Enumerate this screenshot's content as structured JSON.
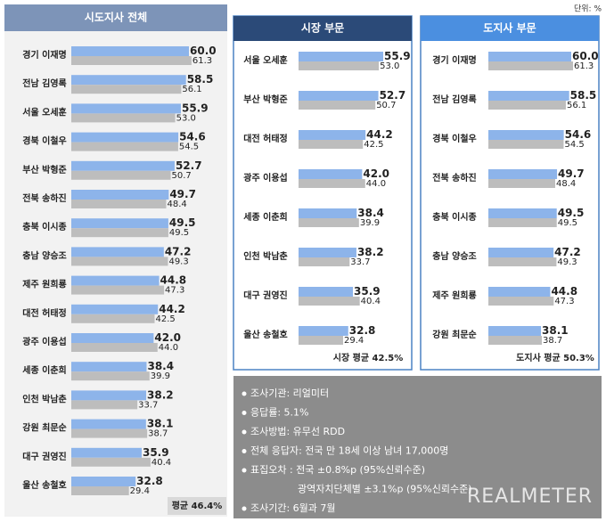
{
  "unit": "단위: %",
  "chart_data": [
    {
      "type": "bar",
      "title": "시도지사 전체",
      "annotation": "평균 46.4%",
      "categories": [
        "경기 이재명",
        "전남 김영록",
        "서울 오세훈",
        "경북 이철우",
        "부산 박형준",
        "전북 송하진",
        "충북 이시종",
        "충남 양승조",
        "제주 원희룡",
        "대전 허태정",
        "광주 이용섭",
        "세종 이춘희",
        "인천 박남춘",
        "강원 최문순",
        "대구 권영진",
        "울산 송철호"
      ],
      "series": [
        {
          "color": "#8db4ea",
          "values": [
            60.0,
            58.5,
            55.9,
            54.6,
            52.7,
            49.7,
            49.5,
            47.2,
            44.8,
            44.2,
            42.0,
            38.4,
            38.2,
            38.1,
            35.9,
            32.8
          ],
          "value_labels": [
            "60.0",
            "58.5",
            "55.9",
            "54.6",
            "52.7",
            "49.7",
            "49.5",
            "47.2",
            "44.8",
            "44.2",
            "42.0",
            "38.4",
            "38.2",
            "38.1",
            "35.9",
            "32.8"
          ]
        },
        {
          "color": "#bdbdbd",
          "values": [
            61.3,
            56.1,
            53.0,
            54.5,
            50.7,
            48.4,
            49.5,
            49.3,
            47.3,
            42.5,
            44.0,
            39.9,
            33.7,
            38.7,
            40.4,
            29.4
          ],
          "value_labels": [
            "61.3",
            "56.1",
            "53.0",
            "54.5",
            "50.7",
            "48.4",
            "49.5",
            "49.3",
            "47.3",
            "42.5",
            "44.0",
            "39.9",
            "33.7",
            "38.7",
            "40.4",
            "29.4"
          ]
        }
      ]
    },
    {
      "type": "bar",
      "title": "시장 부문",
      "annotation": "시장 평균 42.5%",
      "categories": [
        "서울 오세훈",
        "부산 박형준",
        "대전 허태정",
        "광주 이용섭",
        "세종 이춘희",
        "인천 박남춘",
        "대구 권영진",
        "울산 송철호"
      ],
      "series": [
        {
          "color": "#8db4ea",
          "values": [
            55.9,
            52.7,
            44.2,
            42.0,
            38.4,
            38.2,
            35.9,
            32.8
          ],
          "value_labels": [
            "55.9",
            "52.7",
            "44.2",
            "42.0",
            "38.4",
            "38.2",
            "35.9",
            "32.8"
          ]
        },
        {
          "color": "#bdbdbd",
          "values": [
            53.0,
            50.7,
            42.5,
            44.0,
            39.9,
            33.7,
            40.4,
            29.4
          ],
          "value_labels": [
            "53.0",
            "50.7",
            "42.5",
            "44.0",
            "39.9",
            "33.7",
            "40.4",
            "29.4"
          ]
        }
      ]
    },
    {
      "type": "bar",
      "title": "도지사 부문",
      "annotation": "도지사 평균 50.3%",
      "categories": [
        "경기 이재명",
        "전남 김영록",
        "경북 이철우",
        "전북 송하진",
        "충북 이시종",
        "충남 양승조",
        "제주 원희룡",
        "강원 최문순"
      ],
      "series": [
        {
          "color": "#8db4ea",
          "values": [
            60.0,
            58.5,
            54.6,
            49.7,
            49.5,
            47.2,
            44.8,
            38.1
          ],
          "value_labels": [
            "60.0",
            "58.5",
            "54.6",
            "49.7",
            "49.5",
            "47.2",
            "44.8",
            "38.1"
          ]
        },
        {
          "color": "#bdbdbd",
          "values": [
            61.3,
            56.1,
            54.5,
            48.4,
            49.5,
            49.3,
            47.3,
            38.7
          ],
          "value_labels": [
            "61.3",
            "56.1",
            "54.5",
            "48.4",
            "49.5",
            "49.3",
            "47.3",
            "38.7"
          ]
        }
      ]
    }
  ],
  "notes": [
    "조사기관: 리얼미터",
    "응답률: 5.1%",
    "조사방법: 유무선 RDD",
    "전체 응답자: 전국 만 18세 이상 남녀 17,000명",
    [
      "표집오차 : 전국 ±0.8%p (95%신뢰수준)",
      "광역자치단체별 ±3.1%p (95%신뢰수준)"
    ],
    "조사기간: 6월과 7월"
  ],
  "logo": "REALMETER"
}
